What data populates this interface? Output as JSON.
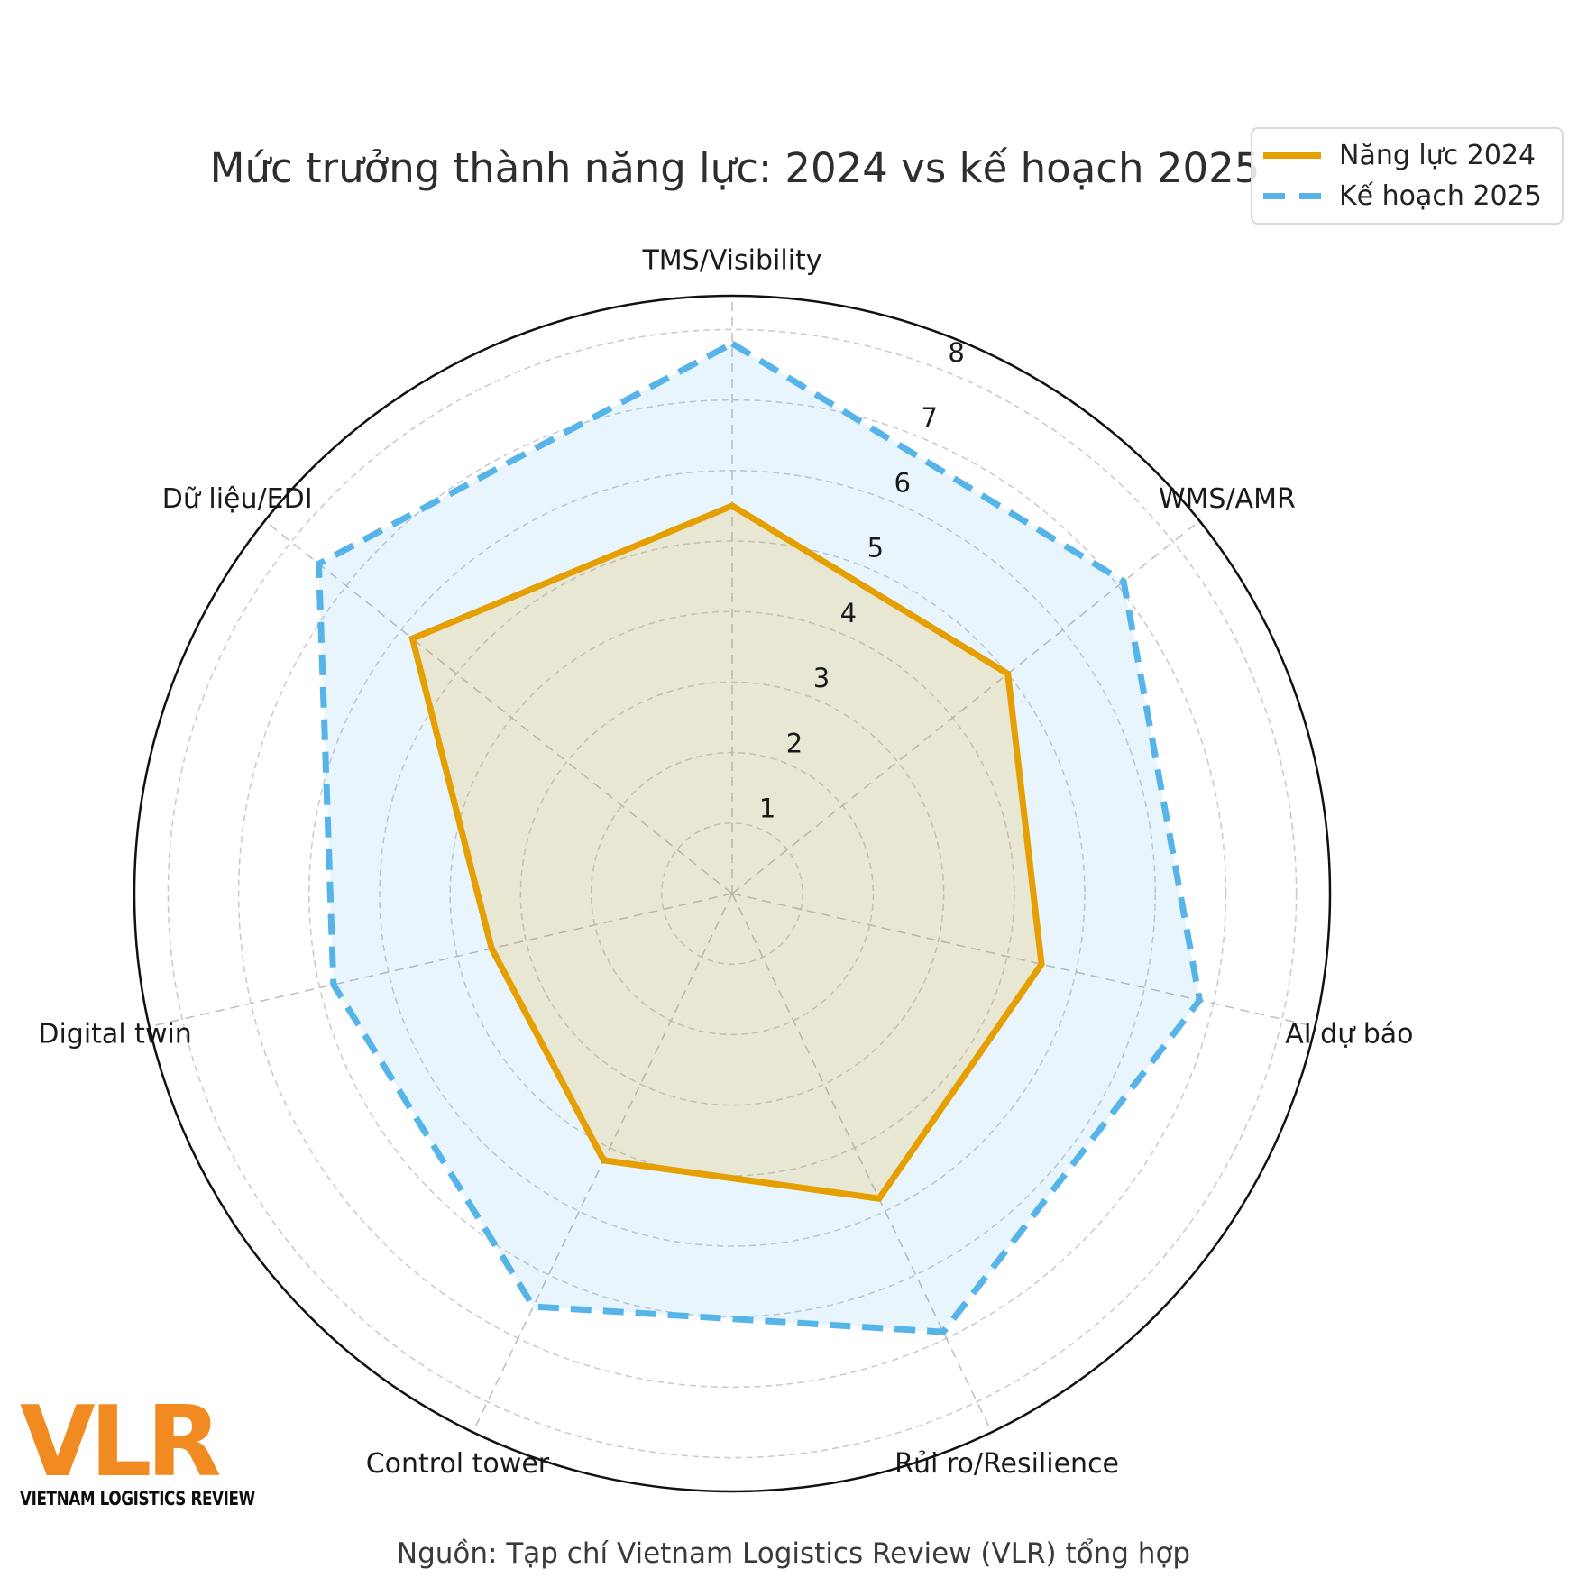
{
  "title": "Mức trưởng thành năng lực: 2024 vs kế hoạch 2025",
  "legend": {
    "items": [
      {
        "label": "Năng lực 2024",
        "color": "#E69F00",
        "line_style": "solid"
      },
      {
        "label": "Kế hoạch 2025",
        "color": "#56B4E9",
        "line_style": "dashed"
      }
    ]
  },
  "source_caption": "Nguồn: Tạp chí Vietnam Logistics Review (VLR) tổng hợp",
  "logo": {
    "text": "VLR",
    "subtext": "VIETNAM LOGISTICS REVIEW",
    "color": "#F08A21"
  },
  "chart_data": {
    "type": "radar",
    "title": "Mức trưởng thành năng lực: 2024 vs kế hoạch 2025",
    "categories": [
      "TMS/Visibility",
      "WMS/AMR",
      "AI dự báo",
      "Rủi ro/Resilience",
      "Control tower",
      "Digital twin",
      "Dữ liệu/EDI"
    ],
    "series": [
      {
        "name": "Năng lực 2024",
        "values": [
          5.5,
          5.0,
          4.5,
          4.8,
          4.2,
          3.5,
          5.8
        ],
        "color": "#E69F00",
        "line_style": "solid",
        "fill_alpha": 0.16
      },
      {
        "name": "Kế hoạch 2025",
        "values": [
          7.8,
          7.1,
          6.8,
          6.9,
          6.5,
          5.8,
          7.5
        ],
        "color": "#56B4E9",
        "line_style": "dashed",
        "fill_alpha": 0.13
      }
    ],
    "radial_ticks": [
      1,
      2,
      3,
      4,
      5,
      6,
      7,
      8
    ],
    "rmin": 0,
    "rmax": 8.5,
    "grid": true,
    "grid_style": "dashed-circles",
    "start_axis": "top",
    "direction": "clockwise",
    "legend_position": "top-right"
  }
}
